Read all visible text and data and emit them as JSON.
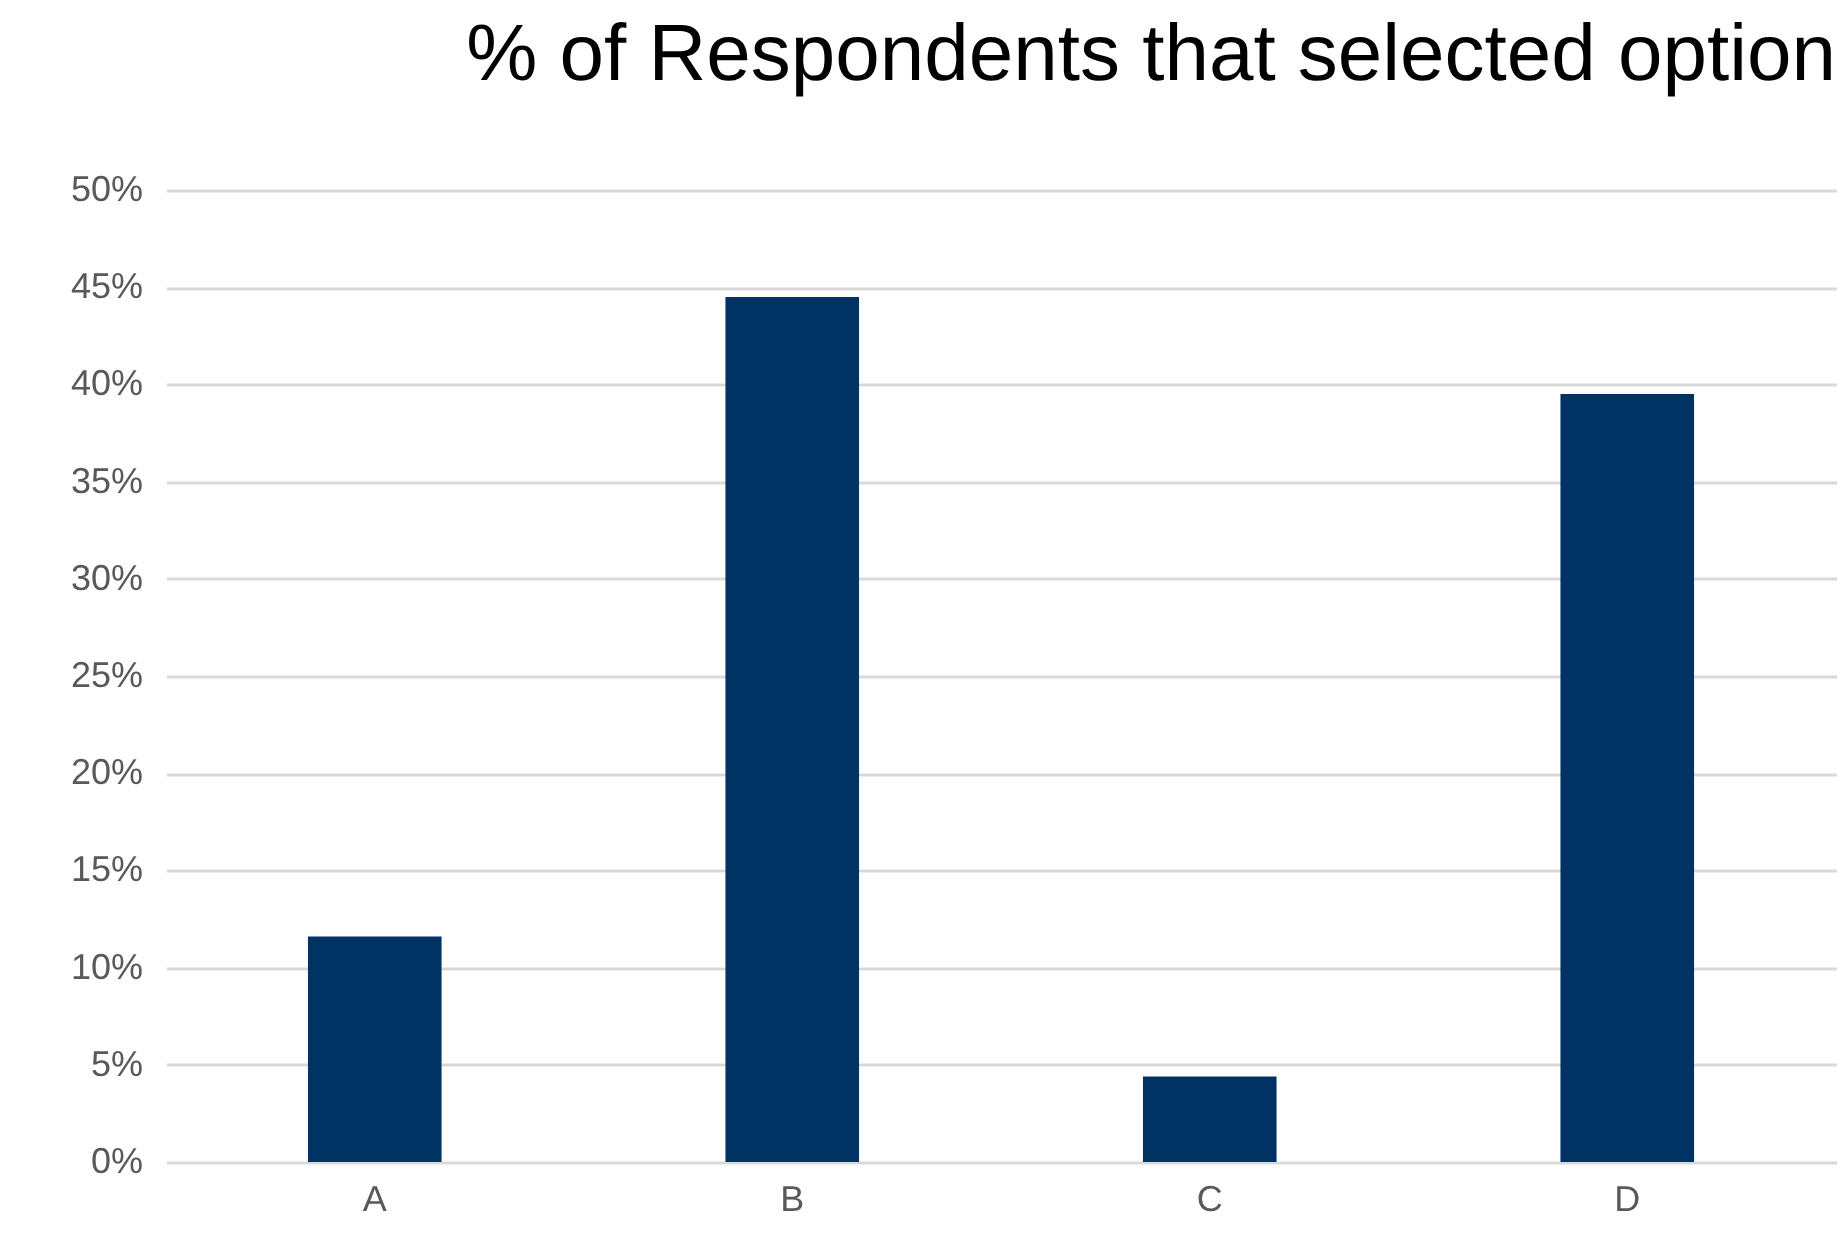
{
  "chart_data": {
    "type": "bar",
    "title": "% of Respondents that selected option",
    "categories": [
      "A",
      "B",
      "C",
      "D"
    ],
    "values": [
      11.6,
      44.5,
      4.4,
      39.5
    ],
    "color": "#003264",
    "ylim": [
      0,
      50
    ],
    "yticks": [
      {
        "value": 0,
        "label": "0%"
      },
      {
        "value": 5,
        "label": "5%"
      },
      {
        "value": 10,
        "label": "10%"
      },
      {
        "value": 15,
        "label": "15%"
      },
      {
        "value": 20,
        "label": "20%"
      },
      {
        "value": 25,
        "label": "25%"
      },
      {
        "value": 30,
        "label": "30%"
      },
      {
        "value": 35,
        "label": "35%"
      },
      {
        "value": 40,
        "label": "40%"
      },
      {
        "value": 45,
        "label": "45%"
      },
      {
        "value": 50,
        "label": "50%"
      }
    ],
    "grid": "y"
  }
}
